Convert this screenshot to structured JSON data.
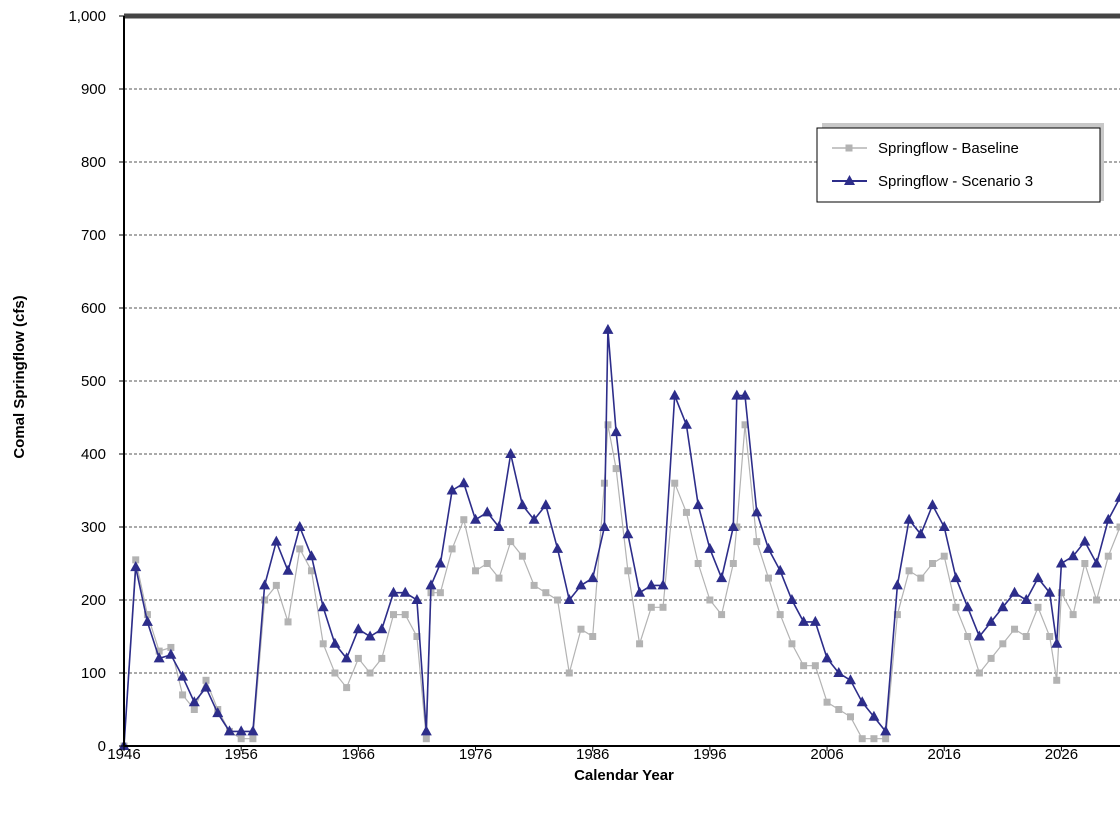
{
  "chart_data": {
    "type": "line",
    "title": "",
    "xlabel": "Calendar Year",
    "ylabel": "Comal Springflow (cfs)",
    "xlim": [
      1946,
      2031
    ],
    "ylim": [
      0,
      1000
    ],
    "x_ticks": [
      "1946",
      "1956",
      "1966",
      "1976",
      "1986",
      "1996",
      "2006",
      "2016",
      "2026"
    ],
    "y_ticks": [
      "0",
      "100",
      "200",
      "300",
      "400",
      "500",
      "600",
      "700",
      "800",
      "900",
      "1,000"
    ],
    "grid": "horizontal dashed",
    "legend_position": "top-right",
    "x": [
      1946.0,
      1947.0,
      1948.0,
      1949.0,
      1950.0,
      1951.0,
      1952.0,
      1953.0,
      1954.0,
      1955.0,
      1956.0,
      1957.0,
      1958.0,
      1959.0,
      1960.0,
      1961.0,
      1962.0,
      1963.0,
      1964.0,
      1965.0,
      1966.0,
      1967.0,
      1968.0,
      1969.0,
      1970.0,
      1971.0,
      1971.8,
      1972.2,
      1973.0,
      1974.0,
      1975.0,
      1976.0,
      1977.0,
      1978.0,
      1979.0,
      1980.0,
      1981.0,
      1982.0,
      1983.0,
      1984.0,
      1985.0,
      1986.0,
      1987.0,
      1987.3,
      1988.0,
      1989.0,
      1990.0,
      1991.0,
      1992.0,
      1993.0,
      1994.0,
      1995.0,
      1996.0,
      1997.0,
      1998.0,
      1998.3,
      1999.0,
      2000.0,
      2001.0,
      2002.0,
      2003.0,
      2004.0,
      2005.0,
      2006.0,
      2007.0,
      2008.0,
      2009.0,
      2010.0,
      2011.0,
      2012.0,
      2013.0,
      2014.0,
      2015.0,
      2016.0,
      2017.0,
      2018.0,
      2019.0,
      2020.0,
      2021.0,
      2022.0,
      2023.0,
      2024.0,
      2025.0,
      2025.6,
      2026.0,
      2027.0,
      2028.0,
      2029.0,
      2030.0,
      2031.0
    ],
    "series": [
      {
        "name": "Springflow - Baseline",
        "color": "#b3b3b3",
        "marker": "square",
        "values": [
          0,
          255,
          180,
          130,
          135,
          70,
          50,
          90,
          50,
          20,
          10,
          10,
          200,
          220,
          170,
          270,
          240,
          140,
          100,
          80,
          120,
          100,
          120,
          180,
          180,
          150,
          10,
          210,
          210,
          270,
          310,
          240,
          250,
          230,
          280,
          260,
          220,
          210,
          200,
          100,
          160,
          150,
          360,
          440,
          380,
          240,
          140,
          190,
          190,
          360,
          320,
          250,
          200,
          180,
          250,
          300,
          440,
          280,
          230,
          180,
          140,
          110,
          110,
          60,
          50,
          40,
          10,
          10,
          10,
          180,
          240,
          230,
          250,
          260,
          190,
          150,
          100,
          120,
          140,
          160,
          150,
          190,
          150,
          90,
          210,
          180,
          250,
          200,
          260,
          300
        ]
      },
      {
        "name": "Springflow - Scenario 3",
        "color": "#2d2d8a",
        "marker": "triangle",
        "values": [
          0,
          245,
          170,
          120,
          125,
          95,
          60,
          80,
          45,
          20,
          20,
          20,
          220,
          280,
          240,
          300,
          260,
          190,
          140,
          120,
          160,
          150,
          160,
          210,
          210,
          200,
          20,
          220,
          250,
          350,
          360,
          310,
          320,
          300,
          400,
          330,
          310,
          330,
          270,
          200,
          220,
          230,
          300,
          570,
          430,
          290,
          210,
          220,
          220,
          480,
          440,
          330,
          270,
          230,
          300,
          480,
          480,
          320,
          270,
          240,
          200,
          170,
          170,
          120,
          100,
          90,
          60,
          40,
          20,
          220,
          310,
          290,
          330,
          300,
          230,
          190,
          150,
          170,
          190,
          210,
          200,
          230,
          210,
          140,
          250,
          260,
          280,
          250,
          310,
          340
        ]
      }
    ]
  }
}
